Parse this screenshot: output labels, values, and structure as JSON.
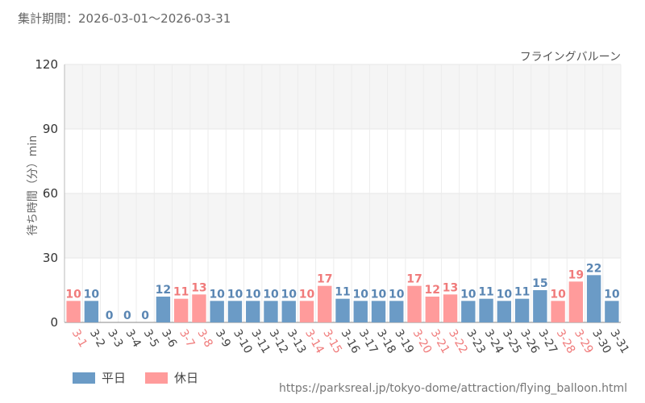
{
  "header": {
    "period": "集計期間：2026-03-01～2026-03-31",
    "attraction": "フライングバルーン"
  },
  "axis": {
    "ylabel": "待ち時間（分）min"
  },
  "legend": {
    "weekday_label": "平日",
    "holiday_label": "休日"
  },
  "footer": {
    "source": "https://parksreal.jp/tokyo-dome/attraction/flying_balloon.html"
  },
  "colors": {
    "weekday": "#6b9bc6",
    "holiday": "#ff9b9b",
    "weekday_text": "#5a86b3",
    "holiday_text": "#f07b7b"
  },
  "chart_data": {
    "type": "bar",
    "title": "",
    "xlabel": "",
    "ylabel": "待ち時間（分）min",
    "ylim": [
      0,
      120
    ],
    "yticks": [
      0,
      30,
      60,
      90,
      120
    ],
    "grid": true,
    "legend_position": "bottom-left",
    "categories": [
      "3-1",
      "3-2",
      "3-3",
      "3-4",
      "3-5",
      "3-6",
      "3-7",
      "3-8",
      "3-9",
      "3-10",
      "3-11",
      "3-12",
      "3-13",
      "3-14",
      "3-15",
      "3-16",
      "3-17",
      "3-18",
      "3-19",
      "3-20",
      "3-21",
      "3-22",
      "3-23",
      "3-24",
      "3-25",
      "3-26",
      "3-27",
      "3-28",
      "3-29",
      "3-30",
      "3-31"
    ],
    "values": [
      10,
      10,
      0,
      0,
      0,
      12,
      11,
      13,
      10,
      10,
      10,
      10,
      10,
      10,
      17,
      11,
      10,
      10,
      10,
      17,
      12,
      13,
      10,
      11,
      10,
      11,
      15,
      10,
      19,
      22,
      10
    ],
    "day_type": [
      "holiday",
      "weekday",
      "weekday",
      "weekday",
      "weekday",
      "weekday",
      "holiday",
      "holiday",
      "weekday",
      "weekday",
      "weekday",
      "weekday",
      "weekday",
      "holiday",
      "holiday",
      "weekday",
      "weekday",
      "weekday",
      "weekday",
      "holiday",
      "holiday",
      "holiday",
      "weekday",
      "weekday",
      "weekday",
      "weekday",
      "weekday",
      "holiday",
      "holiday",
      "weekday",
      "weekday"
    ]
  }
}
